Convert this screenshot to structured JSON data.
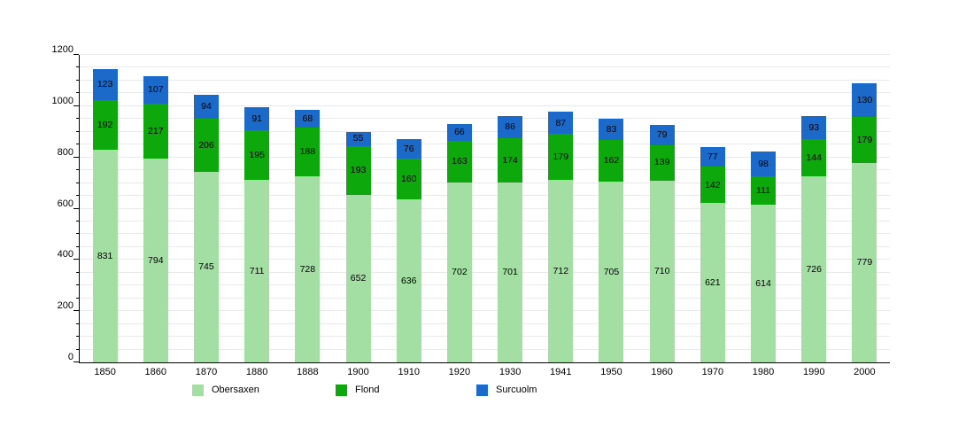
{
  "chart_data": {
    "type": "bar",
    "stacked": true,
    "title": "",
    "xlabel": "",
    "ylabel": "",
    "categories": [
      "1850",
      "1860",
      "1870",
      "1880",
      "1888",
      "1900",
      "1910",
      "1920",
      "1930",
      "1941",
      "1950",
      "1960",
      "1970",
      "1980",
      "1990",
      "2000"
    ],
    "series": [
      {
        "name": "Obersaxen",
        "color": "#a3dfa3",
        "values": [
          831,
          794,
          745,
          711,
          728,
          652,
          636,
          702,
          701,
          712,
          705,
          710,
          621,
          614,
          726,
          779
        ]
      },
      {
        "name": "Flond",
        "color": "#0ca80c",
        "values": [
          192,
          217,
          206,
          195,
          188,
          193,
          160,
          163,
          174,
          179,
          162,
          139,
          142,
          111,
          144,
          179
        ]
      },
      {
        "name": "Surcuolm",
        "color": "#1b69c8",
        "values": [
          123,
          107,
          94,
          91,
          68,
          55,
          76,
          66,
          86,
          87,
          83,
          79,
          77,
          98,
          93,
          130
        ]
      }
    ],
    "ylim": [
      0,
      1200
    ],
    "y_major_tick_labels": [
      "0",
      "200",
      "400",
      "600",
      "800",
      "1000",
      "1200"
    ],
    "y_major_step": 200,
    "y_minor_step": 50,
    "grid": true,
    "gridline_color": "#e9e9e9",
    "axis_color": "#000000",
    "label_color": "#000000",
    "legend_position": "bottom",
    "legend": [
      "Obersaxen",
      "Flond",
      "Surcuolm"
    ]
  }
}
